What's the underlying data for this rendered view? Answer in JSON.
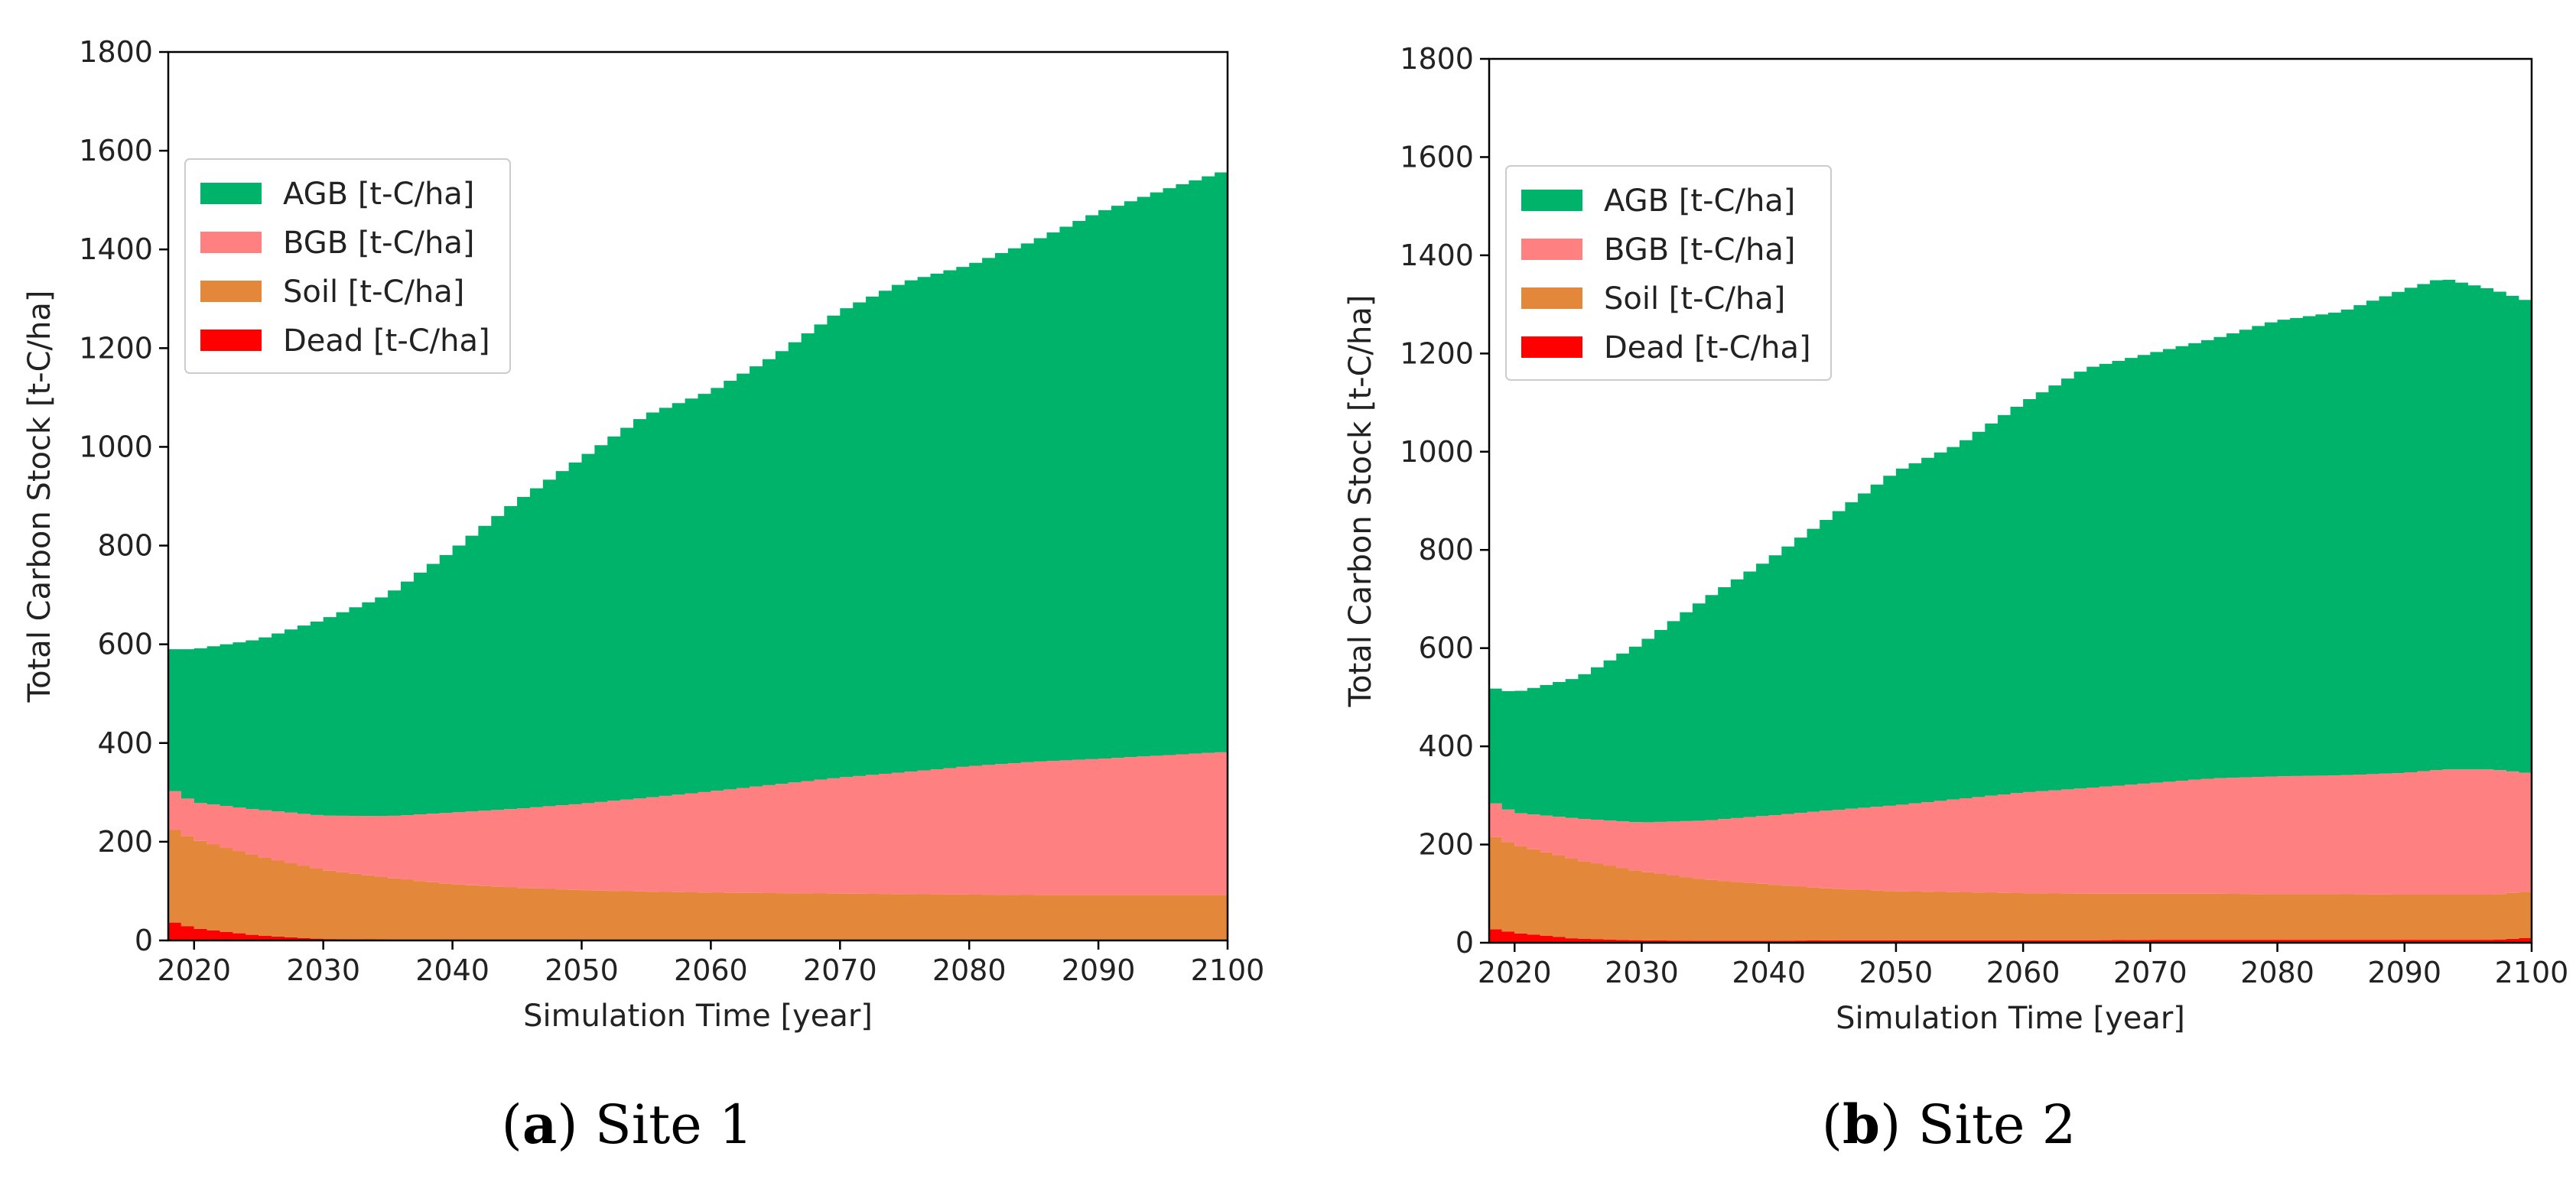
{
  "colors": {
    "agb": "#00b36b",
    "bgb": "#ff8080",
    "soil": "#e3873a",
    "dead": "#ff0000"
  },
  "chart_data": [
    {
      "type": "area",
      "id": "site1",
      "caption_letter": "a",
      "caption_open": "(",
      "caption_close": ")",
      "caption_text": " Site 1",
      "xlabel": "Simulation Time [year]",
      "ylabel": "Total Carbon Stock [t-C/ha]",
      "xlim": [
        2018,
        2100
      ],
      "ylim": [
        0,
        1800
      ],
      "xticks": [
        2020,
        2030,
        2040,
        2050,
        2060,
        2070,
        2080,
        2090,
        2100
      ],
      "yticks": [
        0,
        200,
        400,
        600,
        800,
        1000,
        1200,
        1400,
        1600,
        1800
      ],
      "legend_position": "upper-left",
      "legend": [
        {
          "key": "agb",
          "label": "AGB [t-C/ha]"
        },
        {
          "key": "bgb",
          "label": "BGB [t-C/ha]"
        },
        {
          "key": "soil",
          "label": "Soil [t-C/ha]"
        },
        {
          "key": "dead",
          "label": "Dead [t-C/ha]"
        }
      ],
      "x": [
        2018,
        2020,
        2025,
        2030,
        2035,
        2040,
        2045,
        2050,
        2055,
        2060,
        2065,
        2070,
        2075,
        2080,
        2085,
        2090,
        2095,
        2100
      ],
      "series": [
        {
          "name": "Dead",
          "key": "dead",
          "values": [
            40,
            25,
            10,
            3,
            2,
            2,
            2,
            2,
            2,
            2,
            2,
            2,
            2,
            2,
            2,
            2,
            2,
            2
          ]
        },
        {
          "name": "Soil",
          "key": "soil",
          "values": [
            190,
            180,
            160,
            140,
            125,
            112,
            105,
            100,
            97,
            95,
            94,
            93,
            92,
            91,
            90,
            90,
            90,
            90
          ]
        },
        {
          "name": "BGB",
          "key": "bgb",
          "values": [
            80,
            75,
            95,
            110,
            125,
            145,
            160,
            175,
            190,
            205,
            220,
            235,
            247,
            260,
            270,
            276,
            283,
            290
          ]
        },
        {
          "name": "AGB",
          "key": "agb",
          "values": [
            280,
            310,
            345,
            397,
            448,
            531,
            623,
            700,
            776,
            810,
            869,
            945,
            993,
            1015,
            1055,
            1107,
            1145,
            1178
          ]
        }
      ],
      "totals": [
        590,
        590,
        610,
        650,
        700,
        790,
        890,
        977,
        1065,
        1112,
        1185,
        1275,
        1334,
        1368,
        1417,
        1475,
        1520,
        1560
      ]
    },
    {
      "type": "area",
      "id": "site2",
      "caption_letter": "b",
      "caption_open": "(",
      "caption_close": ")",
      "caption_text": " Site 2",
      "xlabel": "Simulation Time [year]",
      "ylabel": "Total Carbon Stock [t-C/ha]",
      "xlim": [
        2018,
        2100
      ],
      "ylim": [
        0,
        1800
      ],
      "xticks": [
        2020,
        2030,
        2040,
        2050,
        2060,
        2070,
        2080,
        2090,
        2100
      ],
      "yticks": [
        0,
        200,
        400,
        600,
        800,
        1000,
        1200,
        1400,
        1600,
        1800
      ],
      "legend_position": "upper-left",
      "legend": [
        {
          "key": "agb",
          "label": "AGB [t-C/ha]"
        },
        {
          "key": "bgb",
          "label": "BGB [t-C/ha]"
        },
        {
          "key": "soil",
          "label": "Soil [t-C/ha]"
        },
        {
          "key": "dead",
          "label": "Dead [t-C/ha]"
        }
      ],
      "x": [
        2018,
        2020,
        2025,
        2030,
        2035,
        2040,
        2045,
        2050,
        2055,
        2060,
        2065,
        2070,
        2075,
        2080,
        2085,
        2090,
        2093,
        2097,
        2100
      ],
      "series": [
        {
          "name": "Dead",
          "key": "dead",
          "values": [
            30,
            20,
            8,
            5,
            4,
            4,
            5,
            5,
            5,
            5,
            5,
            6,
            6,
            6,
            6,
            6,
            6,
            6,
            10
          ]
        },
        {
          "name": "Soil",
          "key": "soil",
          "values": [
            190,
            180,
            160,
            140,
            125,
            115,
            105,
            100,
            98,
            96,
            95,
            94,
            94,
            93,
            93,
            92,
            92,
            92,
            95
          ]
        },
        {
          "name": "BGB",
          "key": "bgb",
          "values": [
            70,
            65,
            85,
            100,
            120,
            140,
            160,
            175,
            190,
            205,
            215,
            225,
            235,
            240,
            242,
            248,
            255,
            255,
            240
          ]
        },
        {
          "name": "AGB",
          "key": "agb",
          "values": [
            230,
            245,
            287,
            365,
            451,
            521,
            600,
            680,
            722,
            794,
            855,
            875,
            895,
            928,
            944,
            984,
            1000,
            977,
            960
          ]
        }
      ],
      "totals": [
        520,
        510,
        540,
        610,
        700,
        780,
        870,
        960,
        1015,
        1100,
        1170,
        1200,
        1230,
        1267,
        1285,
        1330,
        1353,
        1330,
        1305
      ]
    }
  ]
}
